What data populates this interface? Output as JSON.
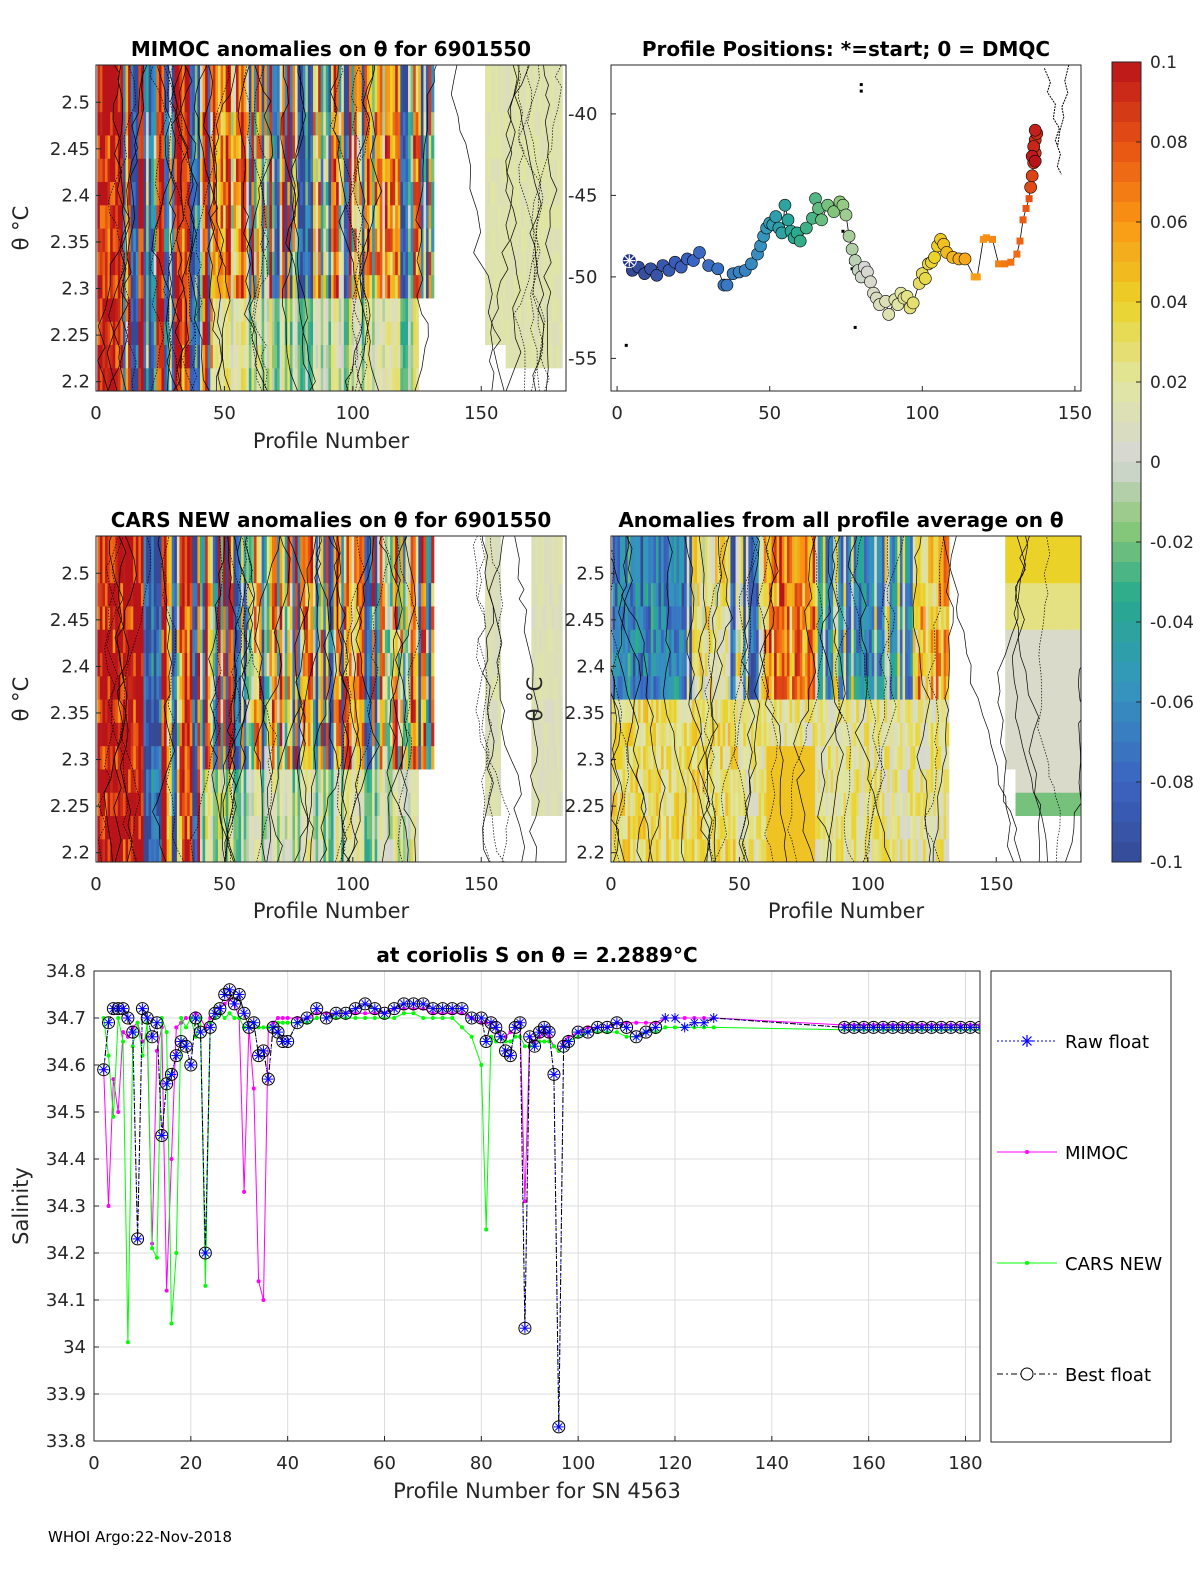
{
  "footer": "WHOI Argo:22-Nov-2018",
  "chart_data": [
    {
      "id": "mimoc",
      "type": "heatmap",
      "title": "MIMOC anomalies on θ  for 6901550",
      "xlabel": "Profile Number",
      "ylabel": "θ °C",
      "xlim": [
        0,
        183
      ],
      "ylim": [
        2.19,
        2.54
      ],
      "xticks": [
        "0",
        "50",
        "100",
        "150"
      ],
      "yticks": [
        "2.2",
        "2.25",
        "2.3",
        "2.35",
        "2.4",
        "2.45",
        "2.5"
      ]
    },
    {
      "id": "positions",
      "type": "scatter",
      "title": "Profile Positions: *=start; 0 = DMQC",
      "xlim": [
        -2,
        152
      ],
      "ylim": [
        -57,
        -37
      ],
      "xticks": [
        "0",
        "50",
        "100",
        "150"
      ],
      "yticks": [
        "-40",
        "-45",
        "-50",
        "-55"
      ],
      "start": {
        "x": 4,
        "y": -49
      },
      "points": [
        [
          5,
          -49.6
        ],
        [
          7,
          -49.4
        ],
        [
          9,
          -49.8
        ],
        [
          11,
          -49.5
        ],
        [
          13,
          -49.9
        ],
        [
          15,
          -49.3
        ],
        [
          17,
          -49.6
        ],
        [
          19,
          -49.1
        ],
        [
          21,
          -49.4
        ],
        [
          23,
          -48.9
        ],
        [
          25,
          -49.0
        ],
        [
          27,
          -48.5
        ],
        [
          30,
          -49.3
        ],
        [
          33,
          -49.5
        ],
        [
          35,
          -50.5
        ],
        [
          36,
          -50.5
        ],
        [
          38,
          -49.8
        ],
        [
          40,
          -49.7
        ],
        [
          42,
          -49.6
        ],
        [
          44,
          -49.2
        ],
        [
          46,
          -48.6
        ],
        [
          47,
          -48.1
        ],
        [
          48,
          -47.5
        ],
        [
          49,
          -47.0
        ],
        [
          50,
          -46.7
        ],
        [
          51,
          -46.8
        ],
        [
          52,
          -46.3
        ],
        [
          53,
          -47.0
        ],
        [
          54,
          -47.3
        ],
        [
          55,
          -45.6
        ],
        [
          56,
          -46.5
        ],
        [
          57,
          -47.2
        ],
        [
          58,
          -47.6
        ],
        [
          59,
          -47.3
        ],
        [
          60,
          -47.8
        ],
        [
          62,
          -47.0
        ],
        [
          64,
          -46.4
        ],
        [
          65,
          -45.2
        ],
        [
          66,
          -45.8
        ],
        [
          67,
          -46.5
        ],
        [
          69,
          -45.6
        ],
        [
          71,
          -46.0
        ],
        [
          73,
          -45.4
        ],
        [
          74,
          -45.6
        ],
        [
          75,
          -46.2
        ],
        [
          76,
          -47.5
        ],
        [
          77,
          -48.3
        ],
        [
          78,
          -49.0
        ],
        [
          79,
          -49.6
        ],
        [
          80,
          -50.0
        ],
        [
          81,
          -49.4
        ],
        [
          82,
          -49.7
        ],
        [
          83,
          -50.3
        ],
        [
          84,
          -51.0
        ],
        [
          85,
          -51.3
        ],
        [
          86,
          -51.7
        ],
        [
          88,
          -51.5
        ],
        [
          89,
          -52.3
        ],
        [
          91,
          -51.4
        ],
        [
          92,
          -51.7
        ],
        [
          93,
          -51.0
        ],
        [
          94,
          -51.3
        ],
        [
          95,
          -51.2
        ],
        [
          96,
          -51.9
        ],
        [
          97,
          -51.6
        ],
        [
          99,
          -50.4
        ],
        [
          100,
          -49.8
        ],
        [
          101,
          -50.1
        ],
        [
          102,
          -49.2
        ],
        [
          103,
          -49.1
        ],
        [
          104,
          -48.8
        ],
        [
          105,
          -48.1
        ],
        [
          106,
          -47.7
        ],
        [
          107,
          -48.0
        ],
        [
          108,
          -48.5
        ],
        [
          110,
          -48.8
        ],
        [
          112,
          -48.9
        ],
        [
          114,
          -48.9
        ],
        [
          117,
          -50.0
        ],
        [
          118,
          -50.0
        ],
        [
          120,
          -47.7
        ],
        [
          121,
          -47.6
        ],
        [
          123,
          -47.7
        ],
        [
          125,
          -49.2
        ],
        [
          127,
          -49.2
        ],
        [
          129,
          -49.1
        ],
        [
          131,
          -48.6
        ],
        [
          132,
          -47.8
        ],
        [
          133,
          -46.5
        ],
        [
          134,
          -45.8
        ],
        [
          135,
          -45.2
        ],
        [
          135.5,
          -44.5
        ],
        [
          136,
          -43.8
        ],
        [
          136.5,
          -43.0
        ],
        [
          137,
          -42.4
        ],
        [
          137,
          -41.6
        ],
        [
          137.5,
          -41.2
        ],
        [
          136.5,
          -42.0
        ],
        [
          137,
          -41.0
        ],
        [
          136,
          -42.6
        ],
        [
          137,
          -42.9
        ]
      ]
    },
    {
      "id": "cars",
      "type": "heatmap",
      "title": "CARS NEW anomalies on θ for 6901550",
      "xlabel": "Profile Number",
      "ylabel": "θ °C",
      "xlim": [
        0,
        183
      ],
      "ylim": [
        2.19,
        2.54
      ],
      "xticks": [
        "0",
        "50",
        "100",
        "150"
      ],
      "yticks": [
        "2.2",
        "2.25",
        "2.3",
        "2.35",
        "2.4",
        "2.45",
        "2.5"
      ]
    },
    {
      "id": "allavg",
      "type": "heatmap",
      "title": "Anomalies from all profile average on θ",
      "xlabel": "Profile Number",
      "ylabel": "θ °C",
      "xlim": [
        0,
        183
      ],
      "ylim": [
        2.19,
        2.54
      ],
      "xticks": [
        "0",
        "50",
        "100",
        "150"
      ],
      "yticks": [
        "2.2",
        "2.25",
        "2.3",
        "2.35",
        "2.4",
        "2.45",
        "2.5"
      ]
    },
    {
      "id": "colorbar",
      "type": "colorbar",
      "range": [
        -0.1,
        0.1
      ],
      "ticks": [
        "0.1",
        "0.08",
        "0.06",
        "0.04",
        "0.02",
        "0",
        "-0.02",
        "-0.04",
        "-0.06",
        "-0.08",
        "-0.1"
      ]
    },
    {
      "id": "salinity",
      "type": "line",
      "title": "at coriolis S on θ = 2.2889°C",
      "xlabel": "Profile Number for SN 4563",
      "ylabel": "Salinity",
      "xlim": [
        0,
        183
      ],
      "ylim": [
        33.8,
        34.8
      ],
      "xticks": [
        "0",
        "20",
        "40",
        "60",
        "80",
        "100",
        "120",
        "140",
        "160",
        "180"
      ],
      "yticks": [
        "34.8",
        "34.7",
        "34.6",
        "34.5",
        "34.4",
        "34.3",
        "34.2",
        "34.1",
        "34",
        "33.9",
        "33.8"
      ],
      "legend": [
        "Raw float",
        "MIMOC",
        "CARS NEW",
        "Best float"
      ],
      "x": [
        2,
        3,
        4,
        5,
        6,
        7,
        8,
        9,
        10,
        11,
        12,
        13,
        14,
        15,
        16,
        17,
        18,
        19,
        20,
        21,
        22,
        23,
        24,
        25,
        26,
        27,
        28,
        29,
        30,
        31,
        32,
        33,
        34,
        35,
        36,
        37,
        38,
        39,
        40,
        42,
        44,
        46,
        48,
        50,
        52,
        54,
        56,
        58,
        60,
        62,
        64,
        66,
        68,
        70,
        72,
        74,
        76,
        78,
        80,
        81,
        82,
        83,
        84,
        85,
        86,
        87,
        88,
        89,
        90,
        91,
        92,
        93,
        94,
        95,
        96,
        97,
        98,
        100,
        102,
        104,
        106,
        108,
        110,
        112,
        114,
        116,
        118,
        120,
        122,
        124,
        126,
        128
      ],
      "series": [
        {
          "name": "Best float",
          "values": [
            34.59,
            34.69,
            34.72,
            34.72,
            34.72,
            34.7,
            34.67,
            34.23,
            34.72,
            34.7,
            34.66,
            34.69,
            34.45,
            34.56,
            34.58,
            34.62,
            34.65,
            34.64,
            34.6,
            34.7,
            34.67,
            34.2,
            34.68,
            34.71,
            34.72,
            34.75,
            34.76,
            34.73,
            34.75,
            34.71,
            34.68,
            34.69,
            34.62,
            34.63,
            34.57,
            34.68,
            34.67,
            34.65,
            34.65,
            34.69,
            34.7,
            34.72,
            34.7,
            34.71,
            34.71,
            34.72,
            34.73,
            34.72,
            34.71,
            34.72,
            34.73,
            34.73,
            34.73,
            34.72,
            34.72,
            34.72,
            34.72,
            34.7,
            34.7,
            34.65,
            34.69,
            34.68,
            34.66,
            34.63,
            34.62,
            34.68,
            34.69,
            34.04,
            34.66,
            34.64,
            34.67,
            34.68,
            34.67,
            34.58,
            33.83,
            34.64,
            34.65,
            34.67,
            34.67,
            34.68,
            34.68,
            34.69,
            34.68,
            34.66,
            34.67,
            34.68,
            34.7,
            34.7,
            34.68,
            34.69,
            34.69,
            34.7
          ]
        },
        {
          "name": "MIMOC",
          "values": [
            34.59,
            34.3,
            34.57,
            34.5,
            34.67,
            34.66,
            34.68,
            34.69,
            34.65,
            34.66,
            34.22,
            34.63,
            34.68,
            34.12,
            34.4,
            34.68,
            34.69,
            34.7,
            34.7,
            34.71,
            34.7,
            34.68,
            34.7,
            34.71,
            34.72,
            34.73,
            34.74,
            34.73,
            34.7,
            34.33,
            34.68,
            34.55,
            34.14,
            34.1,
            34.68,
            34.69,
            34.7,
            34.7,
            34.7,
            34.7,
            34.7,
            34.71,
            34.71,
            34.71,
            34.71,
            34.71,
            34.71,
            34.71,
            34.71,
            34.72,
            34.72,
            34.72,
            34.72,
            34.71,
            34.71,
            34.71,
            34.71,
            34.7,
            34.69,
            34.69,
            34.69,
            34.68,
            34.66,
            34.66,
            34.67,
            34.68,
            34.69,
            34.31,
            34.66,
            34.65,
            34.66,
            34.67,
            34.66,
            34.64,
            34.63,
            34.65,
            34.66,
            34.67,
            34.68,
            34.68,
            34.68,
            34.69,
            34.69,
            34.69,
            34.69,
            34.69,
            34.7,
            34.7,
            34.7,
            34.7,
            34.7,
            34.7
          ]
        },
        {
          "name": "CARS NEW",
          "values": [
            34.7,
            34.62,
            34.49,
            34.7,
            34.65,
            34.01,
            34.64,
            34.69,
            34.62,
            34.69,
            34.21,
            34.19,
            34.7,
            34.67,
            34.05,
            34.2,
            34.7,
            34.68,
            34.7,
            34.66,
            34.7,
            34.13,
            34.69,
            34.7,
            34.71,
            34.7,
            34.71,
            34.7,
            34.7,
            34.68,
            34.68,
            34.69,
            34.68,
            34.68,
            34.68,
            34.68,
            34.69,
            34.69,
            34.69,
            34.69,
            34.69,
            34.7,
            34.7,
            34.7,
            34.7,
            34.7,
            34.7,
            34.7,
            34.7,
            34.7,
            34.71,
            34.71,
            34.7,
            34.7,
            34.7,
            34.7,
            34.68,
            34.66,
            34.6,
            34.25,
            34.66,
            34.65,
            34.66,
            34.65,
            34.65,
            34.66,
            34.66,
            34.64,
            34.64,
            34.64,
            34.65,
            34.65,
            34.65,
            34.64,
            34.63,
            34.64,
            34.65,
            34.66,
            34.67,
            34.67,
            34.67,
            34.67,
            34.66,
            34.66,
            34.67,
            34.67,
            34.68,
            34.68,
            34.68,
            34.68,
            34.68,
            34.68
          ]
        }
      ],
      "tail": {
        "x": [
          155,
          157,
          159,
          161,
          163,
          165,
          167,
          169,
          171,
          173,
          175,
          177,
          179,
          181,
          183
        ],
        "best": [
          34.68,
          34.68,
          34.68,
          34.68,
          34.68,
          34.68,
          34.68,
          34.68,
          34.68,
          34.68,
          34.68,
          34.68,
          34.68,
          34.68,
          34.68
        ],
        "mimoc": 34.685,
        "cars": 34.675
      }
    }
  ]
}
